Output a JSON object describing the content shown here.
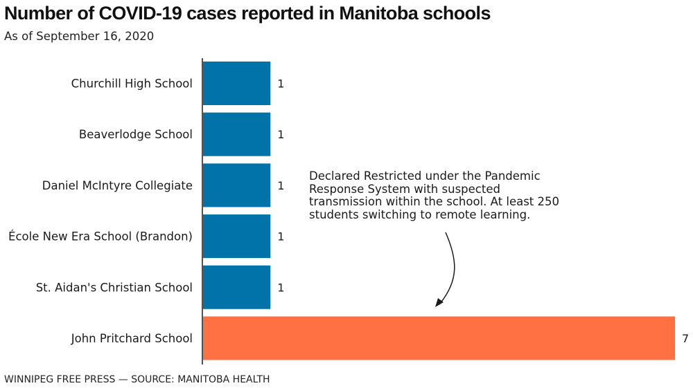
{
  "header": {
    "title": "Number of COVID-19 cases reported in Manitoba schools",
    "subtitle": "As of September 16, 2020"
  },
  "footer": {
    "credit": "WINNIPEG FREE PRESS — SOURCE: MANITOBA HEALTH"
  },
  "colors": {
    "default_bar": "#0173a8",
    "highlight_bar": "#ff7043",
    "axis": "#1a1a1a"
  },
  "chart_data": {
    "type": "bar",
    "orientation": "horizontal",
    "title": "Number of COVID-19 cases reported in Manitoba schools",
    "subtitle": "As of September 16, 2020",
    "categories": [
      "Churchill High School",
      "Beaverlodge School",
      "Daniel McIntyre Collegiate",
      "École New Era School (Brandon)",
      "St. Aidan's Christian School",
      "John Pritchard School"
    ],
    "values": [
      1,
      1,
      1,
      1,
      1,
      7
    ],
    "highlighted_category": "John Pritchard School",
    "data_labels": true,
    "xlim": [
      0,
      7
    ],
    "grid": false,
    "annotations": [
      {
        "target": "John Pritchard School",
        "text": "Declared Restricted under the Pandemic Response System with suspected transmission within the school. At least 250 students switching to remote learning."
      }
    ]
  }
}
